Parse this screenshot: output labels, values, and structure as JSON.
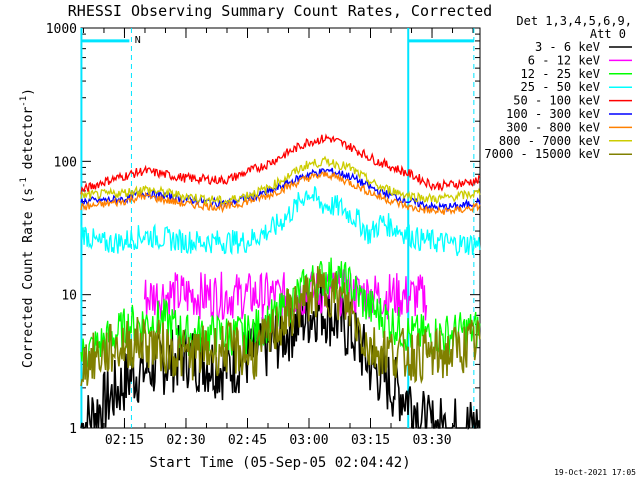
{
  "chart_data": {
    "type": "line",
    "title": "RHESSI Observing Summary Count Rates, Corrected",
    "xlabel": "Start Time (05-Sep-05 02:04:42)",
    "ylabel_main": "Corrected Count Rate (s",
    "ylabel_sup1": "-1",
    "ylabel_mid": " detector",
    "ylabel_sup2": "-1",
    "ylabel_end": ")",
    "yscale": "log",
    "ylim": [
      1,
      1000
    ],
    "xlim_minutes": [
      -0.3,
      97.0
    ],
    "x_tick_labels": [
      {
        "label": "02:15",
        "minute": 10.3
      },
      {
        "label": "02:30",
        "minute": 25.3
      },
      {
        "label": "02:45",
        "minute": 40.3
      },
      {
        "label": "03:00",
        "minute": 55.3
      },
      {
        "label": "03:15",
        "minute": 70.3
      },
      {
        "label": "03:30",
        "minute": 85.3
      }
    ],
    "y_tick_labels": [
      {
        "label": "1",
        "value": 1
      },
      {
        "label": "10",
        "value": 10
      },
      {
        "label": "100",
        "value": 100
      },
      {
        "label": "1000",
        "value": 1000
      }
    ],
    "legend_title": "Det 1,3,4,5,6,9,",
    "legend_subtitle": "Att 0",
    "series": [
      {
        "name": "3 - 6 keV",
        "color": "#000000",
        "points": [
          [
            -0.3,
            1
          ],
          [
            12,
            2.5
          ],
          [
            25,
            3.5
          ],
          [
            35,
            2.8
          ],
          [
            45,
            4
          ],
          [
            52,
            6
          ],
          [
            58,
            8
          ],
          [
            62,
            6.5
          ],
          [
            66,
            5
          ],
          [
            70,
            3
          ],
          [
            76,
            2
          ],
          [
            80,
            1.7
          ],
          [
            84,
            1
          ],
          [
            90,
            1
          ],
          [
            97,
            1
          ]
        ]
      },
      {
        "name": "6 - 12 keV",
        "color": "#ff00ff",
        "points": [
          [
            15,
            9.5
          ],
          [
            20,
            10
          ],
          [
            35,
            9.8
          ],
          [
            50,
            9.8
          ],
          [
            60,
            10.5
          ],
          [
            70,
            10
          ],
          [
            80,
            9.7
          ],
          [
            84,
            9.5
          ]
        ]
      },
      {
        "name": "12 - 25 keV",
        "color": "#00ff00",
        "points": [
          [
            -0.3,
            3.5
          ],
          [
            12,
            6
          ],
          [
            20,
            6.5
          ],
          [
            25,
            5
          ],
          [
            40,
            5
          ],
          [
            48,
            7
          ],
          [
            55,
            12
          ],
          [
            60,
            14
          ],
          [
            65,
            12
          ],
          [
            70,
            8
          ],
          [
            80,
            5
          ],
          [
            88,
            5
          ],
          [
            97,
            5.5
          ]
        ]
      },
      {
        "name": "25 - 50 keV",
        "color": "#00ffff",
        "points": [
          [
            -0.3,
            30
          ],
          [
            4,
            24
          ],
          [
            10,
            25
          ],
          [
            15,
            28
          ],
          [
            25,
            25
          ],
          [
            40,
            25
          ],
          [
            47,
            32
          ],
          [
            52,
            45
          ],
          [
            55,
            60
          ],
          [
            58,
            48
          ],
          [
            63,
            45
          ],
          [
            67,
            37
          ],
          [
            70,
            28
          ],
          [
            73,
            35
          ],
          [
            76,
            32
          ],
          [
            82,
            26
          ],
          [
            90,
            24
          ],
          [
            97,
            24
          ]
        ]
      },
      {
        "name": "50 - 100 keV",
        "color": "#ff0000",
        "points": [
          [
            -0.3,
            60
          ],
          [
            5,
            70
          ],
          [
            15,
            85
          ],
          [
            25,
            75
          ],
          [
            35,
            72
          ],
          [
            45,
            95
          ],
          [
            55,
            140
          ],
          [
            60,
            150
          ],
          [
            65,
            130
          ],
          [
            72,
            100
          ],
          [
            80,
            80
          ],
          [
            86,
            65
          ],
          [
            92,
            68
          ],
          [
            97,
            72
          ]
        ]
      },
      {
        "name": "100 - 300 keV",
        "color": "#0000ff",
        "points": [
          [
            -0.3,
            50
          ],
          [
            10,
            52
          ],
          [
            15,
            58
          ],
          [
            25,
            52
          ],
          [
            35,
            48
          ],
          [
            45,
            58
          ],
          [
            55,
            80
          ],
          [
            60,
            85
          ],
          [
            65,
            78
          ],
          [
            72,
            60
          ],
          [
            80,
            50
          ],
          [
            86,
            45
          ],
          [
            92,
            46
          ],
          [
            97,
            50
          ]
        ]
      },
      {
        "name": "300 - 800 keV",
        "color": "#ff8000",
        "points": [
          [
            -0.3,
            45
          ],
          [
            10,
            50
          ],
          [
            15,
            55
          ],
          [
            25,
            48
          ],
          [
            35,
            45
          ],
          [
            45,
            55
          ],
          [
            55,
            75
          ],
          [
            60,
            80
          ],
          [
            65,
            70
          ],
          [
            72,
            55
          ],
          [
            80,
            45
          ],
          [
            86,
            42
          ],
          [
            92,
            43
          ],
          [
            97,
            46
          ]
        ]
      },
      {
        "name": "800 - 7000 keV",
        "color": "#cccc00",
        "points": [
          [
            -0.3,
            55
          ],
          [
            10,
            58
          ],
          [
            15,
            62
          ],
          [
            25,
            55
          ],
          [
            35,
            50
          ],
          [
            45,
            62
          ],
          [
            55,
            95
          ],
          [
            60,
            100
          ],
          [
            65,
            90
          ],
          [
            72,
            65
          ],
          [
            80,
            55
          ],
          [
            86,
            52
          ],
          [
            92,
            55
          ],
          [
            97,
            58
          ]
        ]
      },
      {
        "name": "7000 - 15000 keV",
        "color": "#808000",
        "points": [
          [
            -0.3,
            3
          ],
          [
            8,
            4
          ],
          [
            15,
            4.5
          ],
          [
            25,
            3.5
          ],
          [
            35,
            4
          ],
          [
            42,
            3.5
          ],
          [
            50,
            7
          ],
          [
            56,
            10
          ],
          [
            60,
            11
          ],
          [
            65,
            8
          ],
          [
            70,
            4
          ],
          [
            80,
            3.5
          ],
          [
            88,
            3.5
          ],
          [
            97,
            4.5
          ]
        ]
      }
    ],
    "annotations": [
      {
        "text": "N",
        "minute": 12.8,
        "value": 800
      }
    ]
  },
  "timestamp": "19-Oct-2021 17:05"
}
